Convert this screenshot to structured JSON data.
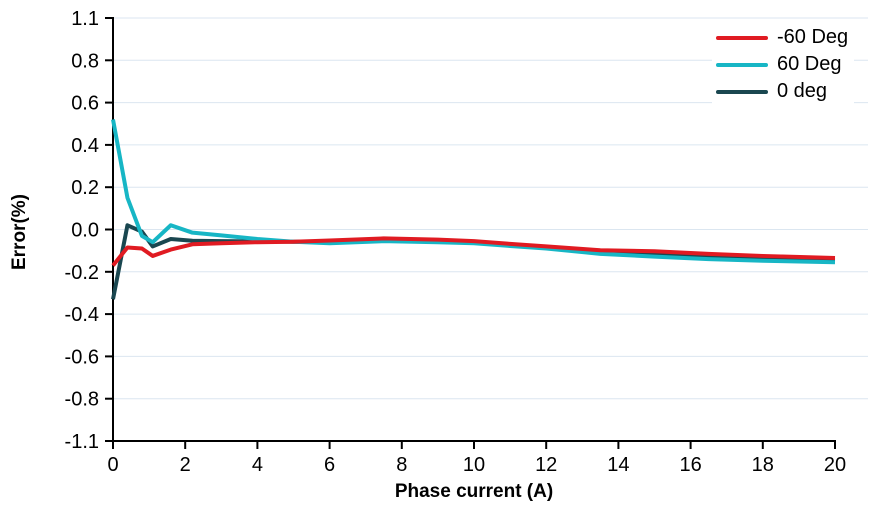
{
  "chart_data": {
    "type": "line",
    "title": "",
    "xlabel": "Phase current (A)",
    "ylabel": "Error(%)",
    "xlim": [
      0,
      20
    ],
    "ylim": [
      -1.1,
      1.1
    ],
    "grid": "horizontal",
    "grid_color": "#dbe6f0",
    "axis_color": "#000000",
    "text_color": "#000000",
    "legend_position": "top-right",
    "x_tick_labels": [
      "0",
      "2",
      "4",
      "6",
      "8",
      "10",
      "12",
      "14",
      "16",
      "18",
      "20"
    ],
    "x_tick_values": [
      0,
      2,
      4,
      6,
      8,
      10,
      12,
      14,
      16,
      18,
      20
    ],
    "y_tick_labels": [
      "1.1",
      "0.8",
      "0.6",
      "0.4",
      "0.2",
      "0.0",
      "-0.2",
      "-0.4",
      "-0.6",
      "-0.8",
      "-1.1"
    ],
    "y_tick_values": [
      1.1,
      0.8,
      0.6,
      0.4,
      0.2,
      0.0,
      -0.2,
      -0.4,
      -0.6,
      -0.8,
      -1.1
    ],
    "x": [
      0,
      0.4,
      0.8,
      1.1,
      1.6,
      2.2,
      3,
      4,
      5,
      6,
      7.5,
      9,
      10,
      11,
      12,
      13.5,
      15,
      16.5,
      18,
      20
    ],
    "series": [
      {
        "name": "-60 Deg",
        "color": "#e01b22",
        "values": [
          -0.17,
          -0.085,
          -0.09,
          -0.125,
          -0.095,
          -0.07,
          -0.065,
          -0.06,
          -0.058,
          -0.052,
          -0.042,
          -0.048,
          -0.055,
          -0.068,
          -0.08,
          -0.098,
          -0.103,
          -0.115,
          -0.125,
          -0.135
        ]
      },
      {
        "name": "60 Deg",
        "color": "#17b6c5",
        "values": [
          0.52,
          0.15,
          -0.03,
          -0.06,
          0.02,
          -0.015,
          -0.028,
          -0.045,
          -0.058,
          -0.065,
          -0.055,
          -0.06,
          -0.065,
          -0.078,
          -0.09,
          -0.115,
          -0.128,
          -0.14,
          -0.148,
          -0.155
        ]
      },
      {
        "name": "0 deg",
        "color": "#1a4750",
        "values": [
          -0.33,
          0.02,
          -0.01,
          -0.08,
          -0.045,
          -0.053,
          -0.055,
          -0.056,
          -0.058,
          -0.058,
          -0.048,
          -0.054,
          -0.06,
          -0.072,
          -0.085,
          -0.105,
          -0.115,
          -0.126,
          -0.136,
          -0.145
        ]
      }
    ]
  }
}
